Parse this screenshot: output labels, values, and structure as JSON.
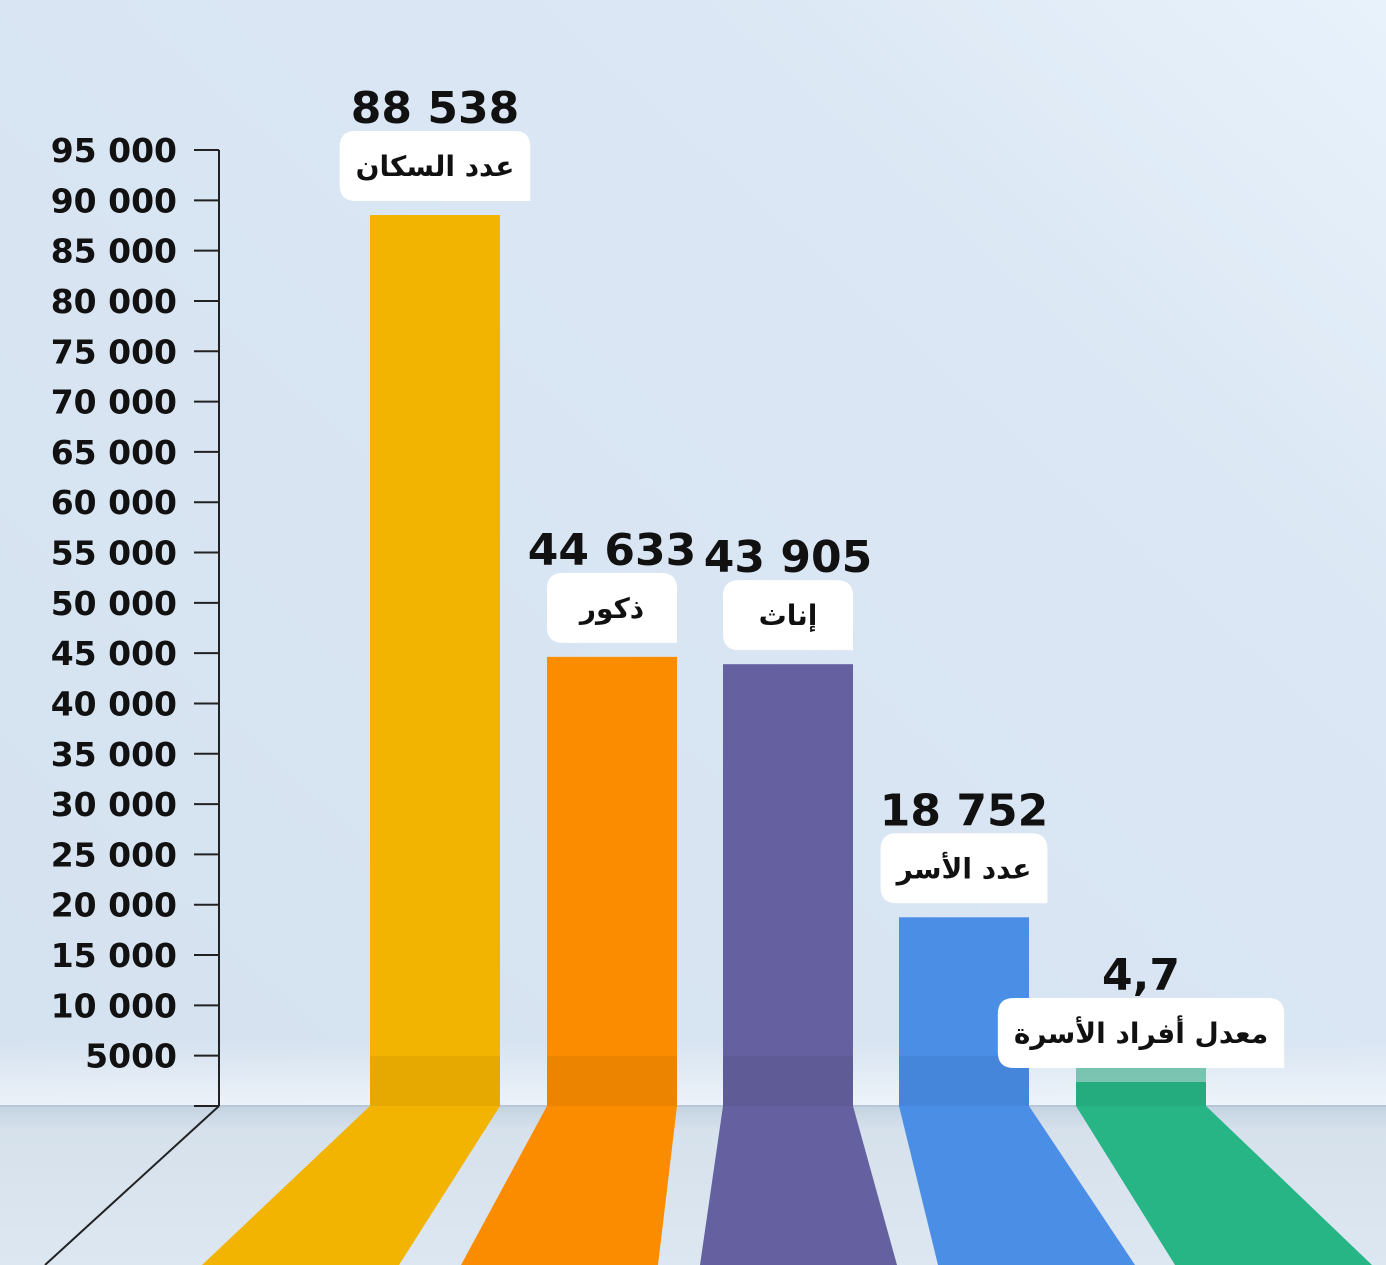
{
  "chart_data": {
    "type": "bar",
    "categories": [
      "عدد السكان",
      "ذكور",
      "إناث",
      "عدد الأسر",
      "معدل أفراد الأسرة"
    ],
    "values": [
      88538,
      44633,
      43905,
      18752,
      4.7
    ],
    "value_labels": [
      "88 538",
      "44 633",
      "43 905",
      "18 752",
      "4,7"
    ],
    "colors": [
      "#f2b301",
      "#fb8c00",
      "#6561a0",
      "#4a8ee6",
      "#27b586"
    ],
    "ylim": [
      0,
      95000
    ],
    "yticks": [
      5000,
      10000,
      15000,
      20000,
      25000,
      30000,
      35000,
      40000,
      45000,
      50000,
      55000,
      60000,
      65000,
      70000,
      75000,
      80000,
      85000,
      90000,
      95000
    ],
    "ytick_labels": [
      "5000",
      "10 000",
      "15 000",
      "20 000",
      "25 000",
      "30 000",
      "35 000",
      "40 000",
      "45 000",
      "50 000",
      "55 000",
      "60 000",
      "65 000",
      "70 000",
      "75 000",
      "80 000",
      "85 000",
      "90 000",
      "95 000"
    ],
    "grid": false,
    "legend": "none",
    "title": "",
    "xlabel": "",
    "ylabel": ""
  }
}
